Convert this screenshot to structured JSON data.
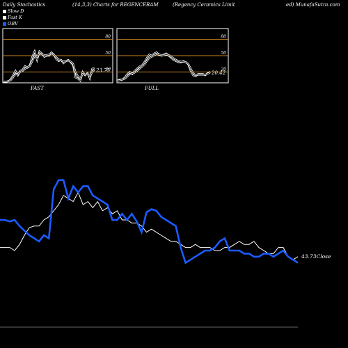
{
  "header": {
    "left": "Daily Stochastics",
    "center": "(14,3,3) Charts for REGENCERAM",
    "company": "(Regency Ceramics Limit",
    "right": "ed) MunafaSutra.com"
  },
  "legend": [
    {
      "label": "Slow  D",
      "color": "#ffffff"
    },
    {
      "label": "Fast K",
      "color": "#ffffff"
    },
    {
      "label": "OBV",
      "color": "#1c5bff"
    }
  ],
  "colors": {
    "obv": "#1c5bff",
    "price": "#ffffff",
    "ref": "#c7811e",
    "bg": "#000000"
  },
  "chart_data": [
    {
      "type": "line",
      "title": "FAST",
      "ylim": [
        0,
        100
      ],
      "ref_lines": [
        80,
        50,
        20
      ],
      "ref_labels": [
        "80",
        "50",
        "20"
      ],
      "last_label": "23.75",
      "series": [
        {
          "name": "Fast K",
          "values": [
            2,
            2,
            3,
            6,
            14,
            22,
            14,
            22,
            24,
            31,
            28,
            32,
            48,
            58,
            42,
            58,
            54,
            48,
            50,
            50,
            56,
            52,
            44,
            40,
            42,
            36,
            40,
            42,
            38,
            33,
            10,
            8,
            4,
            20,
            14,
            18,
            8,
            26,
            27
          ]
        },
        {
          "name": "Slow  D",
          "values": [
            2,
            2,
            3,
            5,
            10,
            16,
            16,
            20,
            22,
            26,
            29,
            31,
            40,
            50,
            48,
            54,
            53,
            51,
            51,
            52,
            54,
            52,
            47,
            43,
            42,
            39,
            40,
            41,
            39,
            35,
            20,
            12,
            8,
            16,
            15,
            16,
            12,
            20,
            24
          ]
        }
      ]
    },
    {
      "type": "line",
      "title": "FULL",
      "ylim": [
        0,
        100
      ],
      "ref_lines": [
        80,
        50,
        20
      ],
      "ref_labels": [
        "80",
        "50",
        "20"
      ],
      "last_label": "20.42",
      "series": [
        {
          "name": "Fast K",
          "values": [
            4,
            6,
            6,
            10,
            16,
            20,
            16,
            22,
            26,
            30,
            32,
            38,
            46,
            52,
            50,
            54,
            56,
            52,
            50,
            52,
            54,
            50,
            46,
            42,
            40,
            38,
            38,
            40,
            38,
            34,
            22,
            14,
            12,
            16,
            16,
            16,
            14,
            18,
            20
          ]
        },
        {
          "name": "Slow  D",
          "values": [
            4,
            5,
            6,
            8,
            12,
            16,
            17,
            19,
            22,
            26,
            30,
            34,
            40,
            46,
            48,
            51,
            53,
            52,
            51,
            51,
            52,
            51,
            48,
            45,
            42,
            40,
            39,
            39,
            38,
            35,
            26,
            18,
            14,
            15,
            15,
            15,
            15,
            17,
            19
          ]
        }
      ]
    },
    {
      "type": "line",
      "title": "",
      "close_label": "43.73Close",
      "series": [
        {
          "name": "OBV",
          "values": [
            70,
            70,
            69,
            70,
            66,
            63,
            60,
            58,
            56,
            60,
            58,
            90,
            96,
            96,
            84,
            92,
            88,
            92,
            92,
            86,
            84,
            82,
            80,
            70,
            70,
            74,
            70,
            74,
            69,
            62,
            75,
            77,
            76,
            72,
            70,
            68,
            66,
            52,
            42,
            44,
            46,
            48,
            50,
            50,
            52,
            56,
            58,
            50,
            50,
            50,
            48,
            48,
            46,
            46,
            48,
            48,
            46,
            48,
            50,
            46,
            44,
            42
          ]
        },
        {
          "name": "Close",
          "values": [
            52,
            52,
            52,
            50,
            54,
            60,
            65,
            66,
            66,
            70,
            72,
            76,
            80,
            86,
            84,
            82,
            88,
            80,
            82,
            78,
            82,
            76,
            78,
            74,
            76,
            70,
            70,
            68,
            68,
            66,
            62,
            64,
            62,
            60,
            58,
            56,
            56,
            54,
            52,
            52,
            54,
            52,
            52,
            52,
            50,
            50,
            52,
            52,
            54,
            56,
            54,
            54,
            56,
            52,
            50,
            48,
            48,
            52,
            52,
            46,
            44,
            46
          ]
        }
      ]
    }
  ]
}
